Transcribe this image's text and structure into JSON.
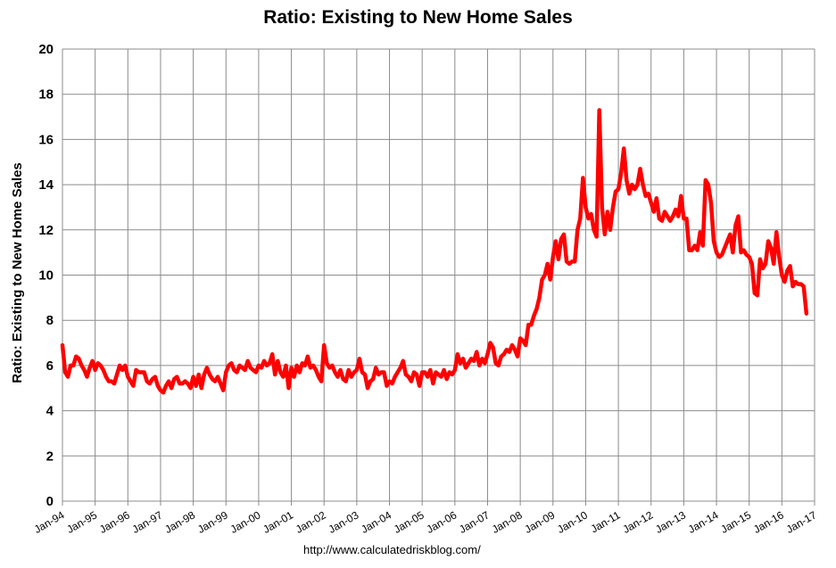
{
  "chart_data": {
    "type": "line",
    "title": "Ratio: Existing to New Home Sales",
    "xlabel": "",
    "ylabel": "Ratio: Existing to New Home Sales",
    "ylim": [
      0,
      20
    ],
    "yticks": [
      0,
      2,
      4,
      6,
      8,
      10,
      12,
      14,
      16,
      18,
      20
    ],
    "x_tick_labels": [
      "Jan-94",
      "Jan-95",
      "Jan-96",
      "Jan-97",
      "Jan-98",
      "Jan-99",
      "Jan-00",
      "Jan-01",
      "Jan-02",
      "Jan-03",
      "Jan-04",
      "Jan-05",
      "Jan-06",
      "Jan-07",
      "Jan-08",
      "Jan-09",
      "Jan-10",
      "Jan-11",
      "Jan-12",
      "Jan-13",
      "Jan-14",
      "Jan-15",
      "Jan-16",
      "Jan-17"
    ],
    "x_start_year": 1994,
    "grid": true,
    "series": [
      {
        "name": "Ratio: Existing to New Home Sales",
        "color": "#ff0000",
        "start": "Jan-94",
        "frequency": "monthly",
        "values": [
          6.9,
          5.7,
          5.5,
          6.0,
          6.0,
          6.4,
          6.3,
          6.0,
          5.8,
          5.5,
          5.9,
          6.2,
          5.8,
          6.1,
          6.0,
          5.8,
          5.5,
          5.3,
          5.3,
          5.2,
          5.6,
          6.0,
          5.8,
          6.0,
          5.5,
          5.3,
          5.1,
          5.8,
          5.7,
          5.7,
          5.7,
          5.3,
          5.2,
          5.4,
          5.5,
          5.1,
          4.9,
          4.8,
          5.1,
          5.3,
          5.0,
          5.4,
          5.5,
          5.2,
          5.2,
          5.3,
          5.2,
          5.0,
          5.5,
          5.1,
          5.6,
          5.0,
          5.6,
          5.9,
          5.6,
          5.4,
          5.3,
          5.5,
          5.2,
          4.9,
          5.7,
          6.0,
          6.1,
          5.8,
          5.7,
          6.0,
          5.9,
          5.8,
          6.2,
          5.9,
          5.8,
          5.7,
          6.0,
          5.9,
          6.2,
          6.0,
          6.1,
          6.5,
          5.6,
          6.2,
          5.7,
          5.5,
          6.0,
          5.0,
          5.9,
          5.5,
          6.0,
          5.7,
          6.1,
          6.0,
          6.4,
          5.9,
          6.0,
          5.8,
          5.5,
          5.3,
          6.9,
          6.1,
          5.9,
          6.0,
          5.7,
          5.5,
          5.8,
          5.4,
          5.3,
          5.8,
          5.5,
          5.7,
          5.8,
          6.3,
          5.7,
          5.6,
          5.0,
          5.3,
          5.4,
          5.9,
          5.6,
          5.7,
          5.7,
          5.1,
          5.3,
          5.2,
          5.5,
          5.7,
          5.9,
          6.2,
          5.6,
          5.5,
          5.3,
          5.7,
          5.6,
          5.1,
          5.7,
          5.7,
          5.5,
          5.8,
          5.2,
          5.7,
          5.6,
          5.5,
          5.8,
          5.4,
          5.7,
          5.6,
          5.8,
          6.5,
          6.1,
          6.3,
          5.9,
          6.1,
          6.3,
          6.2,
          6.6,
          6.0,
          6.3,
          6.1,
          6.5,
          7.0,
          6.8,
          6.1,
          6.0,
          6.4,
          6.5,
          6.7,
          6.6,
          6.9,
          6.7,
          6.4,
          7.2,
          7.1,
          6.9,
          7.8,
          7.8,
          8.2,
          8.5,
          9.0,
          9.8,
          10.0,
          10.5,
          9.8,
          10.8,
          11.5,
          10.7,
          11.6,
          11.8,
          10.6,
          10.5,
          10.6,
          10.6,
          12.0,
          12.5,
          14.3,
          13.0,
          12.5,
          12.7,
          12.0,
          11.7,
          17.3,
          13.0,
          11.8,
          12.8,
          12.0,
          13.0,
          13.7,
          13.8,
          14.5,
          15.6,
          14.2,
          13.6,
          14.0,
          13.8,
          14.0,
          14.7,
          14.0,
          13.5,
          13.6,
          13.2,
          12.8,
          13.4,
          12.5,
          12.4,
          12.8,
          12.6,
          12.4,
          12.6,
          12.9,
          12.6,
          13.5,
          12.5,
          12.5,
          11.1,
          11.1,
          11.3,
          11.1,
          11.9,
          11.3,
          14.2,
          14.0,
          13.2,
          11.5,
          11.0,
          10.8,
          10.9,
          11.2,
          11.5,
          11.8,
          11.0,
          12.2,
          12.6,
          11.0,
          11.1,
          10.9,
          10.8,
          10.5,
          9.2,
          9.1,
          10.7,
          10.3,
          10.5,
          11.5,
          11.2,
          10.5,
          11.9,
          10.8,
          10.0,
          9.7,
          10.2,
          10.4,
          9.5,
          9.7,
          9.6,
          9.6,
          9.5,
          8.3
        ]
      }
    ]
  },
  "source_url": "http://www.calculatedriskblog.com/"
}
